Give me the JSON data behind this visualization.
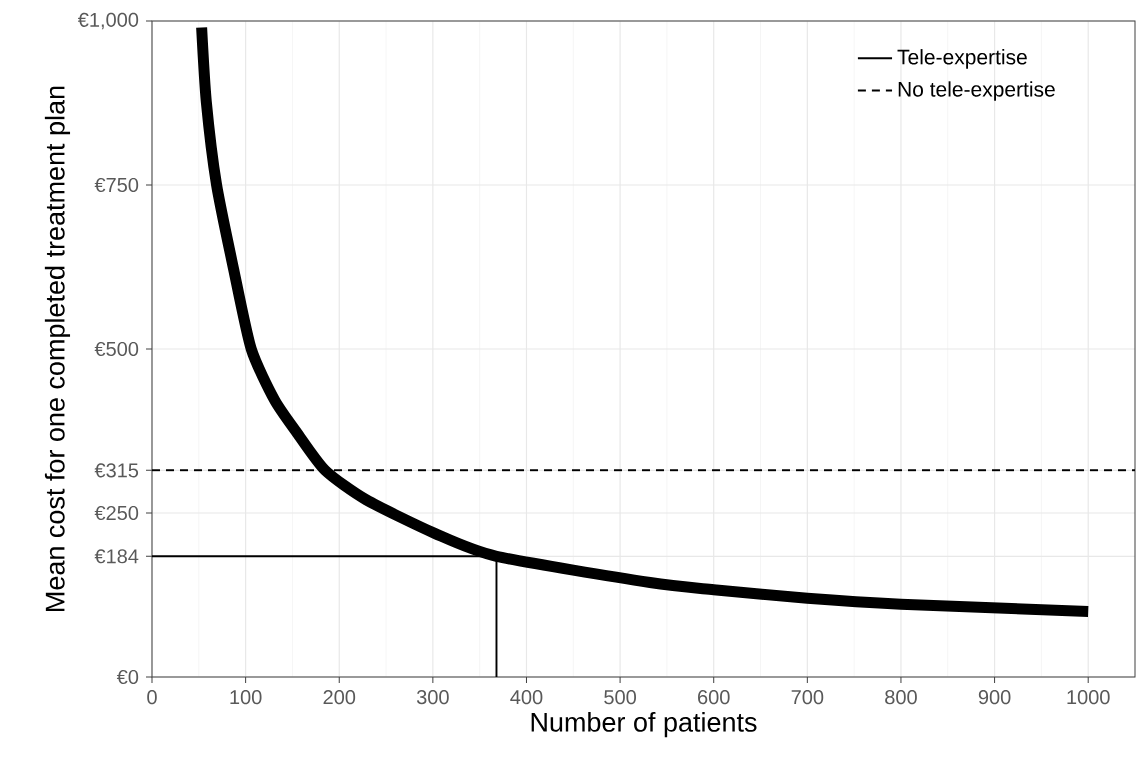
{
  "chart_data": {
    "type": "line",
    "xlabel": "Number of patients",
    "ylabel": "Mean cost for one completed treatment plan",
    "series": [
      {
        "name": "Tele-expertise",
        "color": "#000000",
        "line_style": "solid",
        "x": [
          53,
          58,
          69,
          87,
          106,
          131,
          155,
          185,
          229,
          302,
          368,
          532,
          600,
          700,
          800,
          1000
        ],
        "values": [
          990,
          877,
          750,
          623,
          500,
          422,
          372,
          315,
          270,
          219,
          184,
          144,
          133,
          120,
          111,
          100
        ]
      },
      {
        "name": "No tele-expertise",
        "color": "#000000",
        "line_style": "dashed",
        "x": [
          0,
          1050
        ],
        "values": [
          315,
          315
        ]
      },
      {
        "color": "#000000",
        "line_style": "solid",
        "x": [
          0,
          368,
          368
        ],
        "values": [
          184,
          184,
          0
        ]
      }
    ],
    "xlim": [
      0,
      1050
    ],
    "ylim": [
      0,
      1000
    ],
    "xticks": [
      0,
      100,
      200,
      300,
      400,
      500,
      600,
      700,
      800,
      900,
      1000
    ],
    "yticks": [
      {
        "value": 0,
        "label": "€0"
      },
      {
        "value": 184,
        "label": "€184"
      },
      {
        "value": 250,
        "label": "€250"
      },
      {
        "value": 315,
        "label": "€315"
      },
      {
        "value": 500,
        "label": "€500"
      },
      {
        "value": 750,
        "label": "€750"
      },
      {
        "value": 1000,
        "label": "€1,000"
      }
    ],
    "grid": true,
    "legend": "top right"
  }
}
